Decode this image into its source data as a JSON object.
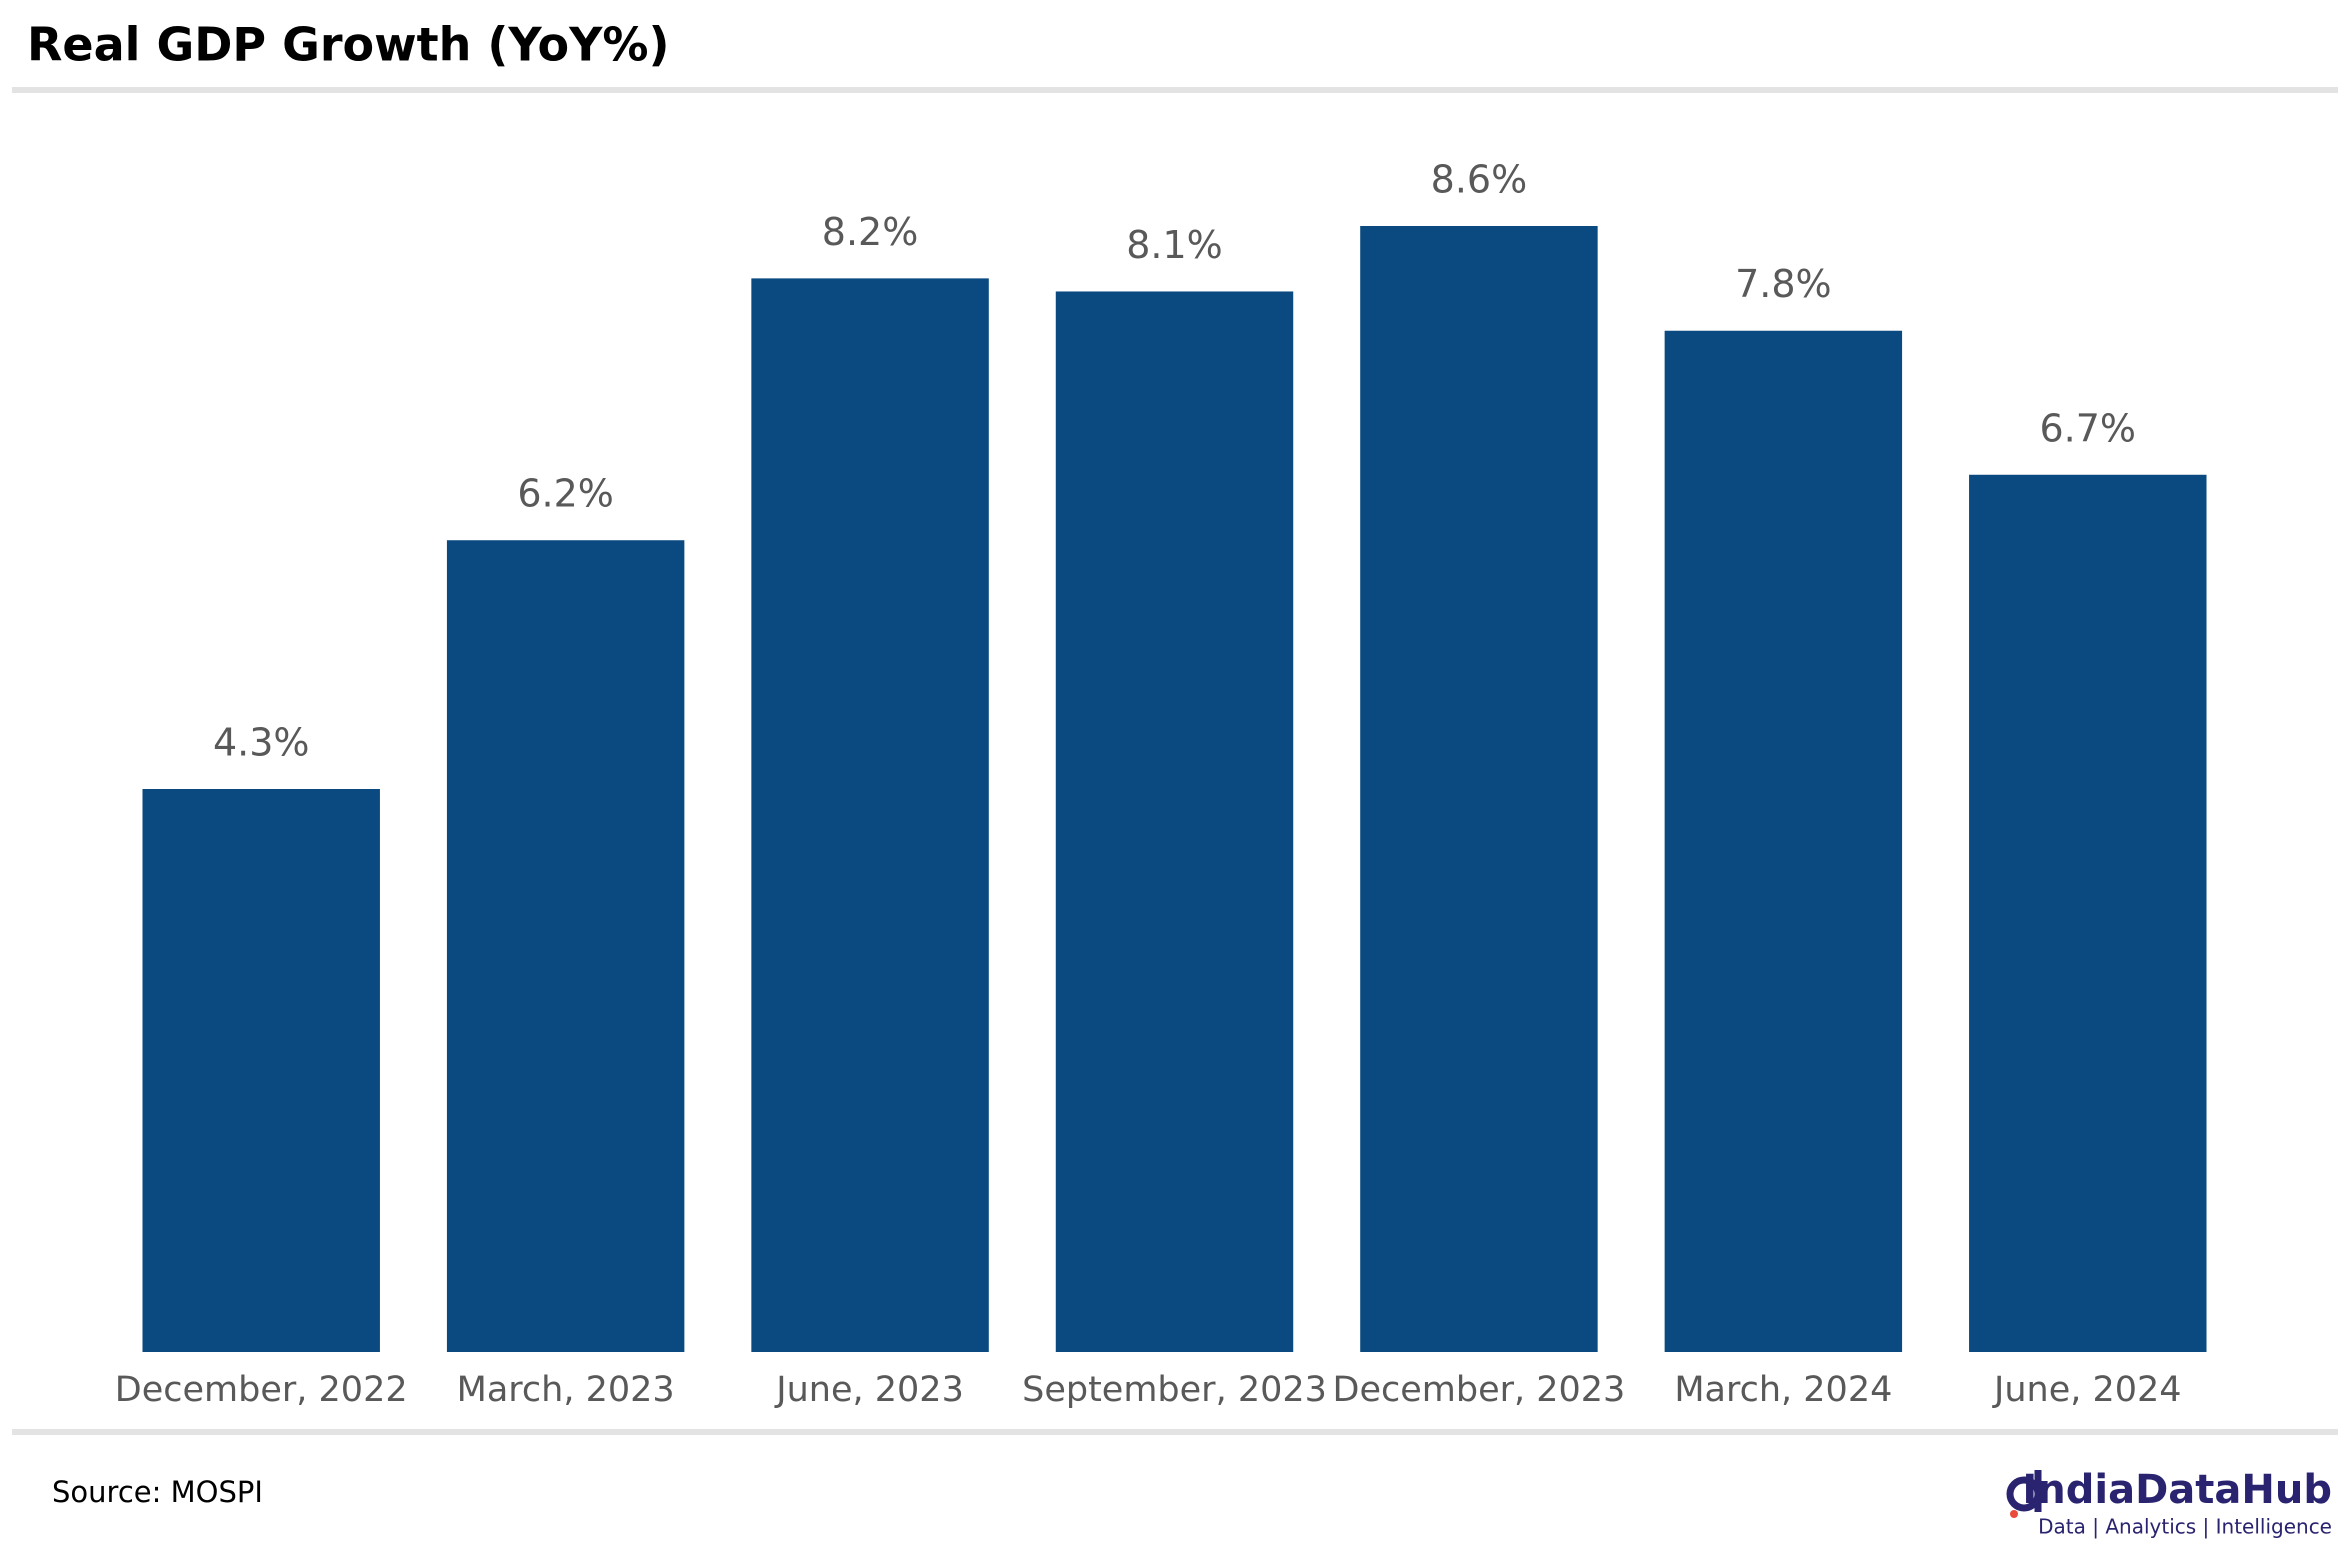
{
  "chart_data": {
    "type": "bar",
    "title": "Real GDP Growth (YoY%)",
    "categories": [
      "December, 2022",
      "March, 2023",
      "June, 2023",
      "September, 2023",
      "December, 2023",
      "March, 2024",
      "June, 2024"
    ],
    "values": [
      4.3,
      6.2,
      8.2,
      8.1,
      8.6,
      7.8,
      6.7
    ],
    "value_labels": [
      "4.3%",
      "6.2%",
      "8.2%",
      "8.1%",
      "8.6%",
      "7.8%",
      "6.7%"
    ],
    "color": "#0b4a80",
    "grid": false,
    "source": "Source: MOSPI"
  },
  "branding": {
    "name": "IndiaDataHub",
    "tagline": "Data | Analytics | Intelligence"
  }
}
